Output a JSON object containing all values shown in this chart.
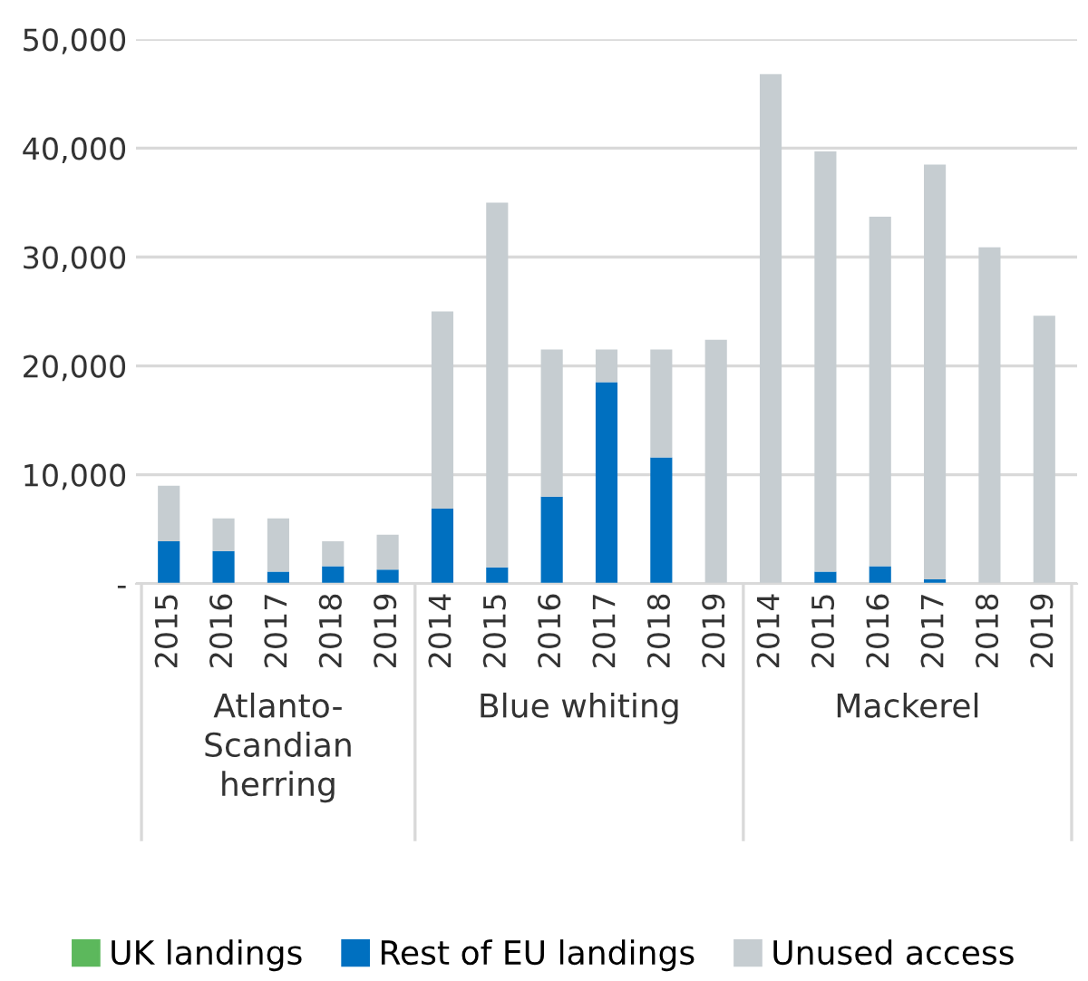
{
  "chart_data": {
    "type": "bar",
    "stacked": true,
    "categories": [
      "2015",
      "2016",
      "2017",
      "2018",
      "2019",
      "2014",
      "2015",
      "2016",
      "2017",
      "2018",
      "2019",
      "2014",
      "2015",
      "2016",
      "2017",
      "2018",
      "2019"
    ],
    "series": [
      {
        "name": "UK landings",
        "color": "#5cb85c",
        "values": [
          0,
          0,
          0,
          0,
          0,
          0,
          0,
          0,
          0,
          0,
          0,
          0,
          0,
          0,
          0,
          0,
          0
        ]
      },
      {
        "name": "Rest of EU landings",
        "color": "#0070c0",
        "values": [
          3900,
          3000,
          1100,
          1600,
          1300,
          6900,
          1500,
          8000,
          18500,
          11600,
          0,
          0,
          1100,
          1600,
          400,
          0,
          0
        ]
      },
      {
        "name": "Unused access",
        "color": "#c6cdd1",
        "values": [
          5100,
          3000,
          4900,
          2300,
          3200,
          18100,
          33500,
          13500,
          3000,
          9900,
          22400,
          46800,
          38600,
          32100,
          38100,
          30900,
          24600
        ]
      }
    ],
    "annotations": [
      "Atlanto-\nScandian\nherring",
      "Blue whiting",
      "Mackerel"
    ],
    "ylim": [
      0,
      50000
    ],
    "yticks": [
      {
        "value": 0,
        "label": "-"
      },
      {
        "value": 10000,
        "label": "10,000"
      },
      {
        "value": 20000,
        "label": "20,000"
      },
      {
        "value": 30000,
        "label": "30,000"
      },
      {
        "value": 40000,
        "label": "40,000"
      },
      {
        "value": 50000,
        "label": "50,000"
      }
    ],
    "grid": "y",
    "legend": "bottom"
  }
}
